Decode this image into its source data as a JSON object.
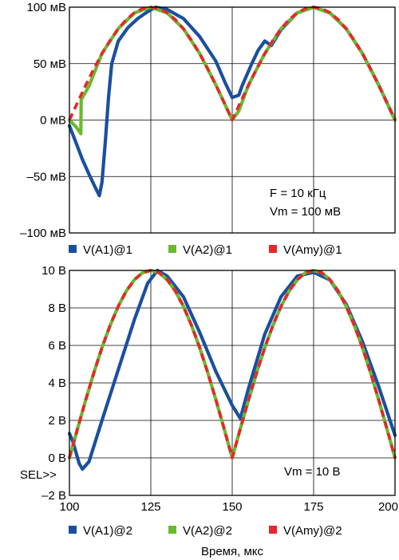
{
  "chart_data": [
    {
      "type": "line",
      "title": "",
      "xlabel": "",
      "ylabel": "",
      "xlim": [
        100,
        200
      ],
      "ylim": [
        -100,
        100
      ],
      "x_ticks": [
        100,
        125,
        150,
        175,
        200
      ],
      "y_tick_values": [
        -100,
        -50,
        0,
        50,
        100
      ],
      "y_tick_labels": [
        "–100 мВ",
        "–50 мВ",
        "0 мВ",
        "50 мВ",
        "100 мВ"
      ],
      "grid": true,
      "legend_placement": "bottom",
      "annotations": [
        "F = 10 кГц",
        "Vm = 100 мВ"
      ],
      "series": [
        {
          "name": "V(A1)@1",
          "color": "#1a4fa0",
          "x": [
            100,
            102,
            104,
            106,
            108,
            109.2,
            110,
            111,
            112,
            113,
            115,
            118,
            121,
            124,
            126.5,
            130,
            135,
            140,
            145,
            148,
            150,
            152,
            153,
            156,
            158,
            160,
            162,
            165,
            170,
            175,
            180,
            185,
            190,
            195,
            200
          ],
          "y": [
            -5,
            -20,
            -35,
            -48,
            -60,
            -67,
            -55,
            -20,
            20,
            50,
            70,
            82,
            90,
            96,
            100,
            98,
            90,
            74,
            52,
            32,
            20,
            22,
            30,
            50,
            62,
            70,
            66,
            80,
            95,
            100,
            95,
            81,
            59,
            31,
            0
          ]
        },
        {
          "name": "V(A2)@1",
          "color": "#6ab92e",
          "x": [
            100,
            102,
            103.5,
            103.6,
            104,
            106,
            110,
            115,
            120,
            125,
            130,
            135,
            140,
            145,
            150,
            152,
            155,
            160,
            165,
            170,
            175,
            180,
            185,
            190,
            195,
            200
          ],
          "y": [
            0,
            -6,
            -12,
            18,
            20,
            30,
            59,
            81,
            95,
            100,
            95,
            81,
            59,
            31,
            0,
            8,
            31,
            59,
            81,
            95,
            100,
            95,
            81,
            59,
            31,
            0
          ]
        },
        {
          "name": "V(Amy)@1",
          "color": "#e8262a",
          "x": [
            100,
            102.5,
            105,
            107.5,
            110,
            112.5,
            115,
            117.5,
            120,
            122.5,
            125,
            127.5,
            130,
            132.5,
            135,
            137.5,
            140,
            142.5,
            145,
            147.5,
            150,
            152.5,
            155,
            157.5,
            160,
            162.5,
            165,
            167.5,
            170,
            172.5,
            175,
            177.5,
            180,
            182.5,
            185,
            187.5,
            190,
            192.5,
            195,
            197.5,
            200
          ],
          "y": [
            0,
            15.6,
            30.9,
            45.4,
            58.8,
            70.7,
            80.9,
            89.1,
            95.1,
            98.8,
            100,
            98.8,
            95.1,
            89.1,
            80.9,
            70.7,
            58.8,
            45.4,
            30.9,
            15.6,
            0,
            15.6,
            30.9,
            45.4,
            58.8,
            70.7,
            80.9,
            89.1,
            95.1,
            98.8,
            100,
            98.8,
            95.1,
            89.1,
            80.9,
            70.7,
            58.8,
            45.4,
            30.9,
            15.6,
            0
          ]
        }
      ]
    },
    {
      "type": "line",
      "title": "",
      "xlabel": "Время, мкс",
      "ylabel": "",
      "xlim": [
        100,
        200
      ],
      "ylim": [
        -2,
        10
      ],
      "x_ticks": [
        100,
        125,
        150,
        175,
        200
      ],
      "y_tick_values": [
        -2,
        0,
        2,
        4,
        6,
        8,
        10
      ],
      "y_tick_labels": [
        "–2 В",
        "0 В",
        "2 В",
        "4 В",
        "6 В",
        "8 В",
        "10 В"
      ],
      "grid": true,
      "legend_placement": "bottom",
      "annotations": [
        "Vm = 10 В"
      ],
      "cursor_label": "SEL>>",
      "series": [
        {
          "name": "V(A1)@2",
          "color": "#1a4fa0",
          "x": [
            100,
            101,
            102,
            103,
            104,
            106,
            110,
            115,
            120,
            124,
            127,
            130,
            135,
            140,
            145,
            150,
            152.5,
            155,
            160,
            165,
            170,
            175,
            180,
            185,
            190,
            195,
            200
          ],
          "y": [
            1.3,
            0.9,
            0.3,
            -0.3,
            -0.6,
            -0.2,
            2.0,
            4.7,
            7.4,
            9.3,
            10,
            9.7,
            8.6,
            6.7,
            4.6,
            2.8,
            2.1,
            3.7,
            6.6,
            8.6,
            9.7,
            9.9,
            9.5,
            8.2,
            6.2,
            3.8,
            1.2
          ]
        },
        {
          "name": "V(A2)@2",
          "color": "#6ab92e",
          "x": [
            100,
            102.5,
            105,
            107.5,
            110,
            112.5,
            115,
            117.5,
            120,
            122.5,
            125,
            127.5,
            130,
            132.5,
            135,
            137.5,
            140,
            142.5,
            145,
            147.5,
            150,
            152.5,
            155,
            157.5,
            160,
            162.5,
            165,
            167.5,
            170,
            172.5,
            175,
            177.5,
            180,
            182.5,
            185,
            187.5,
            190,
            192.5,
            195,
            197.5,
            200
          ],
          "y": [
            0,
            1.56,
            3.09,
            4.54,
            5.88,
            7.07,
            8.09,
            8.91,
            9.51,
            9.88,
            10,
            9.88,
            9.51,
            8.91,
            8.09,
            7.07,
            5.88,
            4.54,
            3.09,
            1.56,
            0,
            1.56,
            3.09,
            4.54,
            5.88,
            7.07,
            8.09,
            8.91,
            9.51,
            9.88,
            10,
            9.88,
            9.51,
            8.91,
            8.09,
            7.07,
            5.88,
            4.54,
            3.09,
            1.56,
            0
          ]
        },
        {
          "name": "V(Amy)@2",
          "color": "#e8262a",
          "x": [
            100,
            102.5,
            105,
            107.5,
            110,
            112.5,
            115,
            117.5,
            120,
            122.5,
            125,
            127.5,
            130,
            132.5,
            135,
            137.5,
            140,
            142.5,
            145,
            147.5,
            150,
            152.5,
            155,
            157.5,
            160,
            162.5,
            165,
            167.5,
            170,
            172.5,
            175,
            177.5,
            180,
            182.5,
            185,
            187.5,
            190,
            192.5,
            195,
            197.5,
            200
          ],
          "y": [
            0,
            1.56,
            3.09,
            4.54,
            5.88,
            7.07,
            8.09,
            8.91,
            9.51,
            9.88,
            10,
            9.88,
            9.51,
            8.91,
            8.09,
            7.07,
            5.88,
            4.54,
            3.09,
            1.56,
            0,
            1.56,
            3.09,
            4.54,
            5.88,
            7.07,
            8.09,
            8.91,
            9.51,
            9.88,
            10,
            9.88,
            9.51,
            8.91,
            8.09,
            7.07,
            5.88,
            4.54,
            3.09,
            1.56,
            0
          ]
        }
      ]
    }
  ]
}
